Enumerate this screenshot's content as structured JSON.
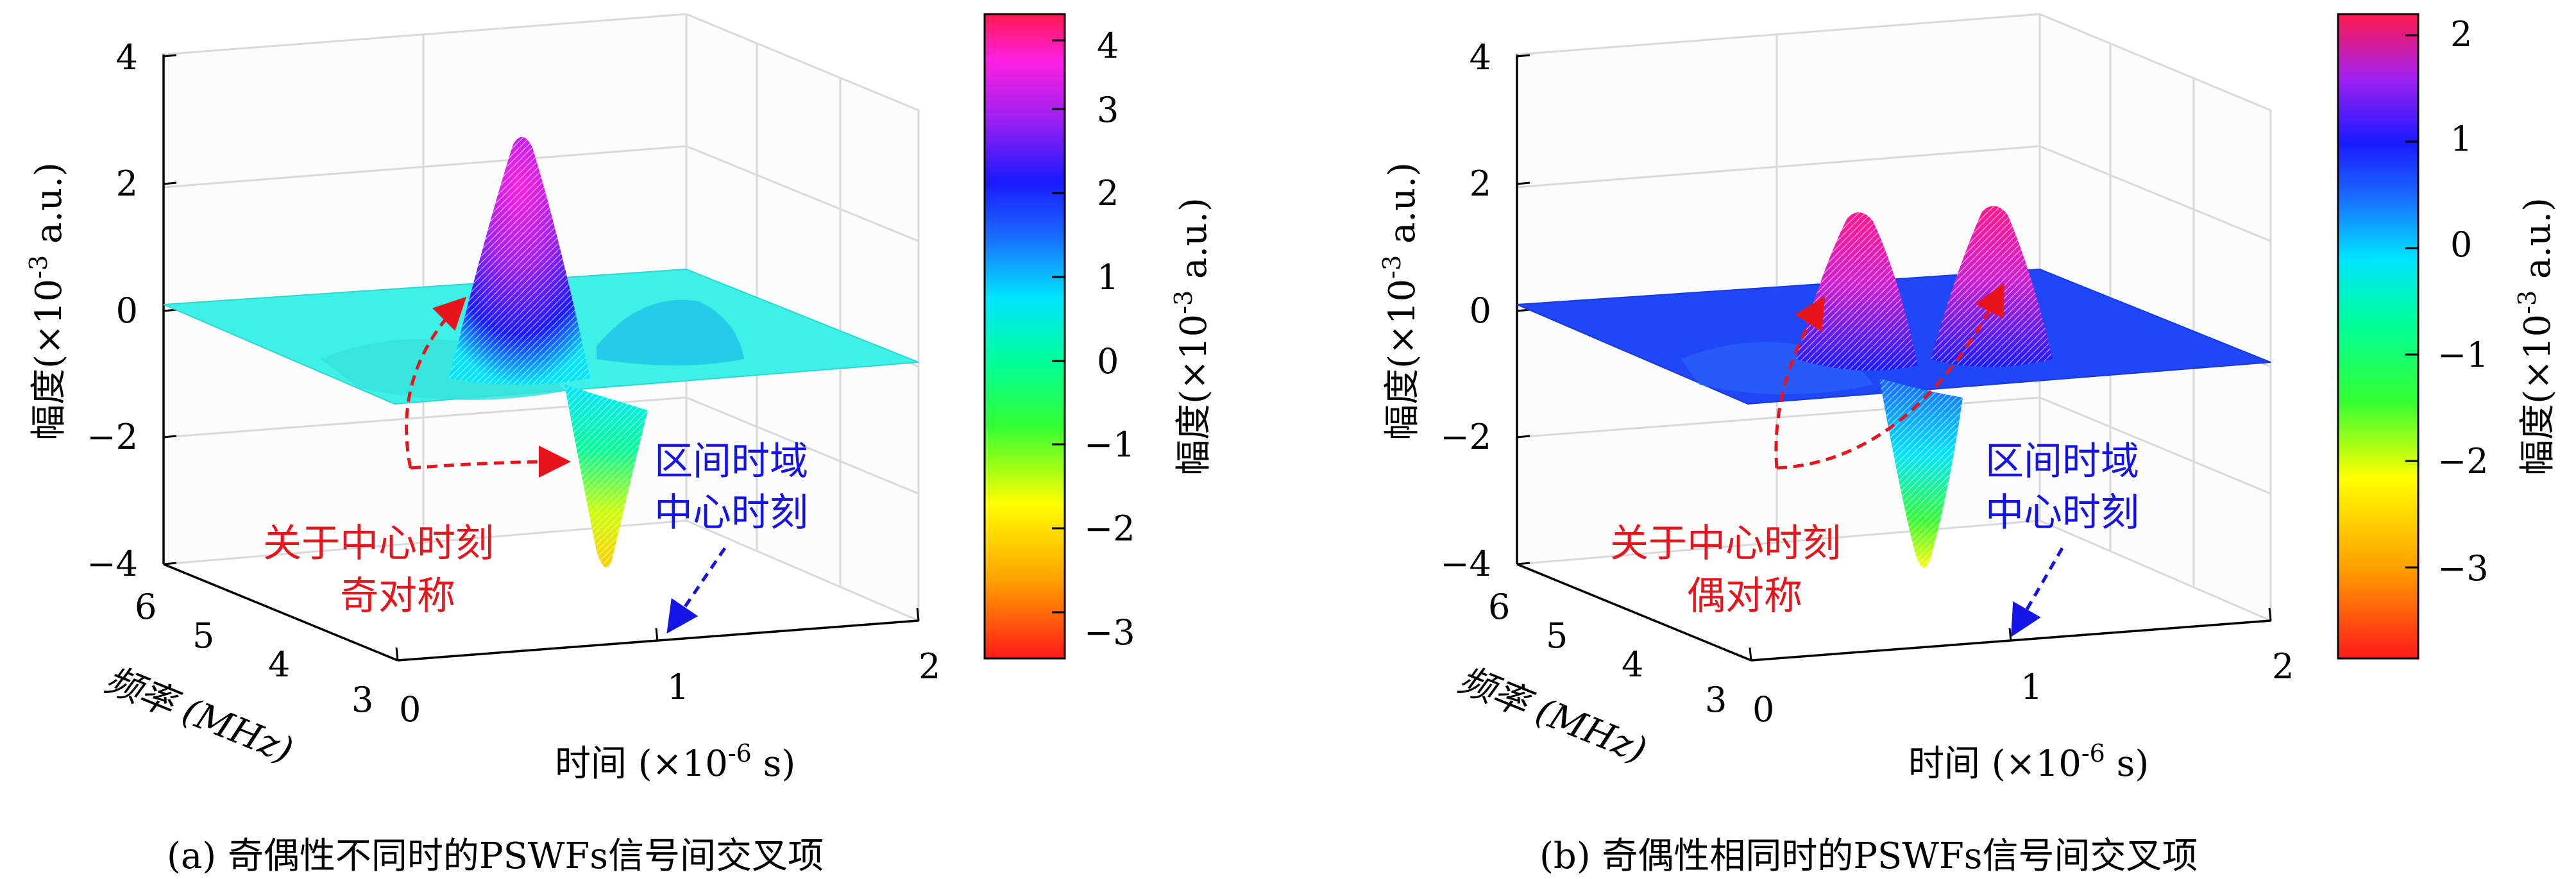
{
  "chart_data": [
    {
      "type": "surface",
      "panel_label": "(a)",
      "caption": "(a) 奇偶性不同时的PSWFs信号间交叉项",
      "xlabel": "时间 (×10-6 s)",
      "x_axis": {
        "label_main": "时间 (×10",
        "label_exp": "-6",
        "label_unit": " s)",
        "ticks": [
          "0",
          "1",
          "2"
        ],
        "range": [
          0,
          2
        ]
      },
      "y_axis": {
        "label": "频率 (MHz)",
        "ticks": [
          "3",
          "4",
          "5",
          "6"
        ],
        "range": [
          3,
          6
        ]
      },
      "z_axis": {
        "label_main": "幅度(×10",
        "label_exp": "-3",
        "label_unit": " a.u.)",
        "ticks": [
          "−4",
          "−2",
          "0",
          "2",
          "4"
        ],
        "range": [
          -4,
          4
        ]
      },
      "colorbar": {
        "label_main": "幅度(×10",
        "label_exp": "-3",
        "label_unit": " a.u.)",
        "ticks": [
          "−3",
          "−2",
          "−1",
          "0",
          "1",
          "2",
          "3",
          "4"
        ],
        "range": [
          -3.4,
          4.3
        ],
        "colormap": "hsv"
      },
      "surface_description": "odd-symmetric cross term about the time-domain center: positive peak ~2.8 and negative trough ~-3.3",
      "peaks": [
        {
          "time": 0.85,
          "freq": 4.5,
          "amplitude": 2.8
        },
        {
          "time": 1.05,
          "freq": 4.7,
          "amplitude": -3.3
        }
      ],
      "annotations": [
        {
          "text_lines": [
            "关于中心时刻",
            "奇对称"
          ],
          "color": "#e8141b"
        },
        {
          "text_lines": [
            "区间时域",
            "中心时刻"
          ],
          "color": "#1414e6"
        }
      ]
    },
    {
      "type": "surface",
      "panel_label": "(b)",
      "caption": "(b) 奇偶性相同时的PSWFs信号间交叉项",
      "xlabel": "时间 (×10-6 s)",
      "x_axis": {
        "label_main": "时间 (×10",
        "label_exp": "-6",
        "label_unit": " s)",
        "ticks": [
          "0",
          "1",
          "2"
        ],
        "range": [
          0,
          2
        ]
      },
      "y_axis": {
        "label": "频率 (MHz)",
        "ticks": [
          "3",
          "4",
          "5",
          "6"
        ],
        "range": [
          3,
          6
        ]
      },
      "z_axis": {
        "label_main": "幅度(×10",
        "label_exp": "-3",
        "label_unit": " a.u.)",
        "ticks": [
          "−4",
          "−2",
          "0",
          "2",
          "4"
        ],
        "range": [
          -4,
          4
        ]
      },
      "colorbar": {
        "label_main": "幅度(×10",
        "label_exp": "-3",
        "label_unit": " a.u.)",
        "ticks": [
          "−3",
          "−2",
          "−1",
          "0",
          "1",
          "2"
        ],
        "range": [
          -3.9,
          2.2
        ],
        "colormap": "hsv"
      },
      "surface_description": "even-symmetric cross term about the time-domain center: two positive peaks ~1.5 and a central trough ~-3.6",
      "peaks": [
        {
          "time": 0.6,
          "freq": 4.5,
          "amplitude": 1.5
        },
        {
          "time": 1.4,
          "freq": 4.5,
          "amplitude": 1.5
        },
        {
          "time": 1.0,
          "freq": 4.7,
          "amplitude": -3.6
        }
      ],
      "annotations": [
        {
          "text_lines": [
            "关于中心时刻",
            "偶对称"
          ],
          "color": "#e8141b"
        },
        {
          "text_lines": [
            "区间时域",
            "中心时刻"
          ],
          "color": "#1414e6"
        }
      ]
    }
  ]
}
